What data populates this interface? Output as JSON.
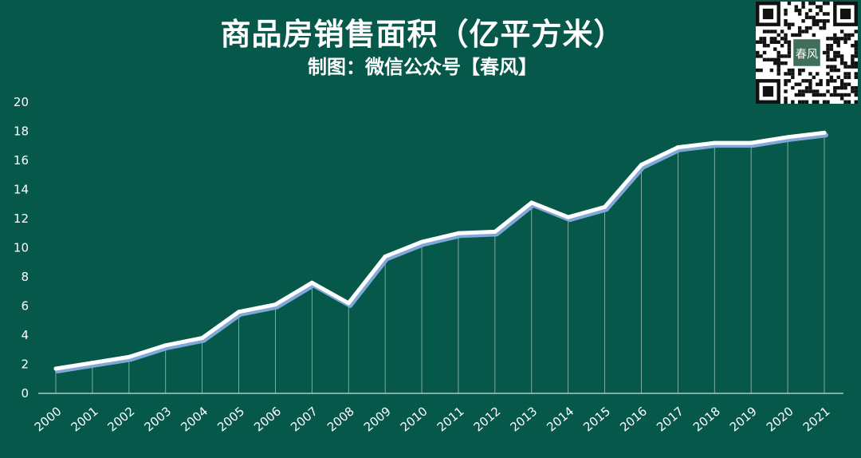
{
  "header": {
    "title": "商品房销售面积（亿平方米）",
    "subtitle": "制图：微信公众号【春风】"
  },
  "qr_code": {
    "seal_text": "春风"
  },
  "colors": {
    "background": "#06584a",
    "line": "#ffffff",
    "line_shadow": "#7fa8d8",
    "axis": "#ffffff"
  },
  "chart_data": {
    "type": "line",
    "title": "商品房销售面积（亿平方米）",
    "xlabel": "",
    "ylabel": "",
    "ylim": [
      0,
      20
    ],
    "yticks": [
      0,
      2,
      4,
      6,
      8,
      10,
      12,
      14,
      16,
      18,
      20
    ],
    "categories": [
      "2000",
      "2001",
      "2002",
      "2003",
      "2004",
      "2005",
      "2006",
      "2007",
      "2008",
      "2009",
      "2010",
      "2011",
      "2012",
      "2013",
      "2014",
      "2015",
      "2016",
      "2017",
      "2018",
      "2019",
      "2020",
      "2021"
    ],
    "series": [
      {
        "values": [
          1.7,
          2.1,
          2.5,
          3.3,
          3.8,
          5.6,
          6.1,
          7.6,
          6.2,
          9.4,
          10.4,
          11.0,
          11.1,
          13.1,
          12.1,
          12.8,
          15.7,
          16.9,
          17.2,
          17.2,
          17.6,
          17.9
        ]
      }
    ],
    "drop_lines": true,
    "grid": false
  }
}
